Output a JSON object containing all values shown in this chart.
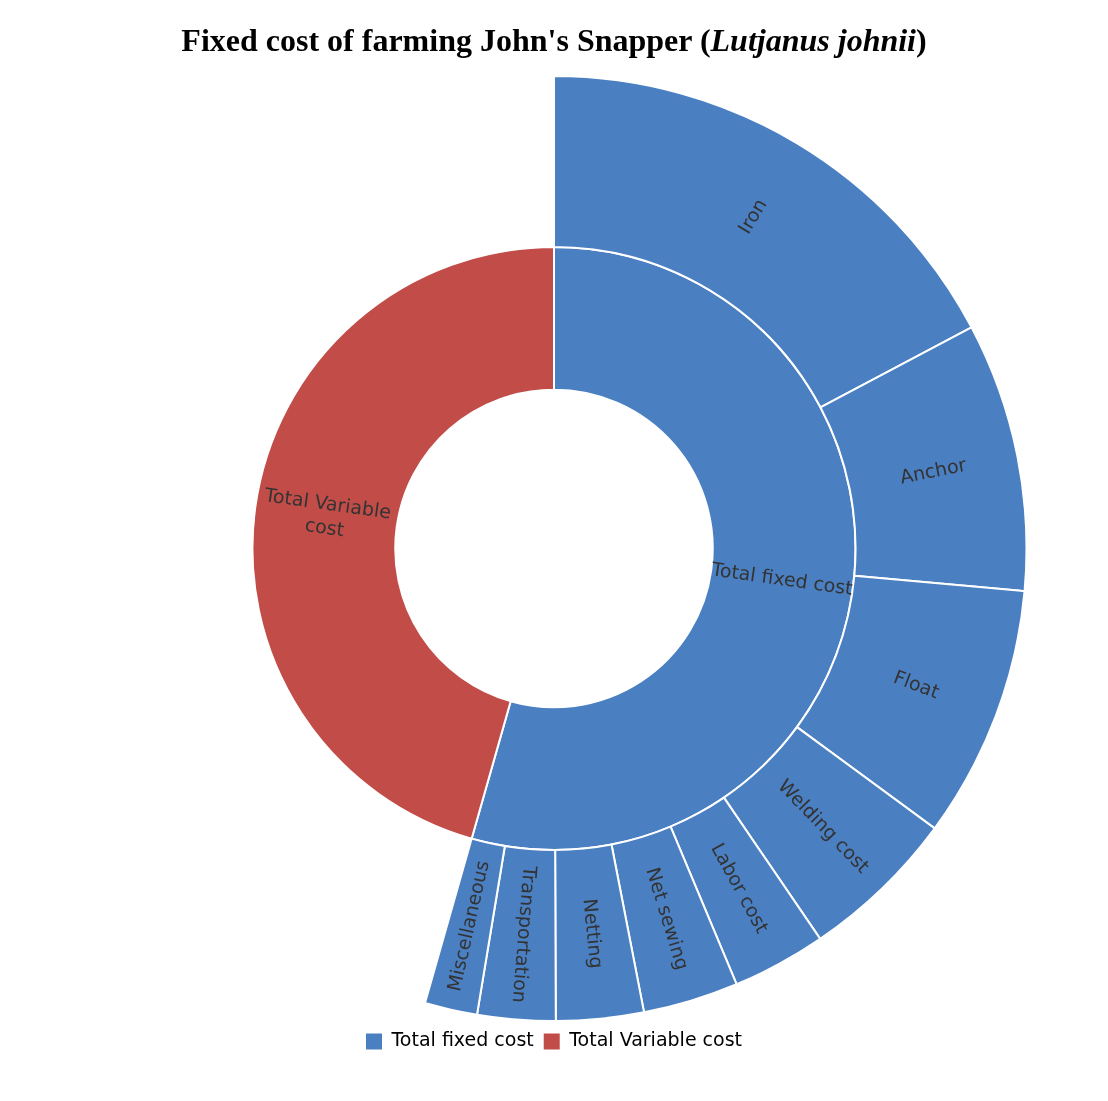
{
  "chart_data": {
    "type": "donut",
    "title": "Fixed cost of farming John's Snapper (Lutjanus johnii)",
    "categories": [
      "Total fixed cost",
      "Total Variable cost",
      "Iron",
      "Anchor",
      "Float",
      "Welding cost",
      "Labor cost",
      "Net sewing",
      "Netting",
      "Transportation",
      "Miscellaneous"
    ],
    "series": [
      {
        "color": "#4a7fc2",
        "values": [
          null,
          null,
          31.7,
          16.9,
          15.9,
          9.9,
          5.9,
          6.0,
          5.5,
          4.9,
          3.3
        ]
      },
      {
        "colors": [
          "#4a7fc2",
          "#c24d48",
          null,
          null,
          null,
          null,
          null,
          null,
          null,
          null,
          null
        ],
        "values": [
          54.4,
          45.6,
          null,
          null,
          null,
          null,
          null,
          null,
          null,
          null,
          null
        ]
      }
    ],
    "legend": "bottom"
  }
}
